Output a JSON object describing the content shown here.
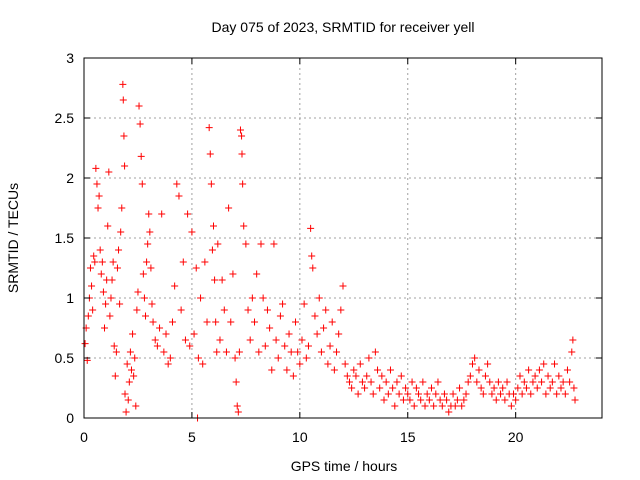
{
  "chart_data": {
    "type": "scatter",
    "title": "Day 075 of 2023, SRMTID for receiver yell",
    "xlabel": "GPS time / hours",
    "ylabel": "SRMTID / TECUs",
    "xlim": [
      0,
      24
    ],
    "ylim": [
      0,
      3
    ],
    "xticks": [
      0,
      5,
      10,
      15,
      20
    ],
    "xtick_labels": [
      "0",
      "5",
      "10",
      "15",
      "20"
    ],
    "yticks": [
      0,
      0.5,
      1,
      1.5,
      2,
      2.5,
      3
    ],
    "ytick_labels": [
      "0",
      "0.5",
      "1",
      "1.5",
      "2",
      "2.5",
      "3"
    ],
    "grid": true,
    "marker": "plus",
    "color": "#ff0000",
    "series": [
      {
        "name": "SRMTID",
        "points": [
          [
            0.05,
            0.62
          ],
          [
            0.1,
            0.75
          ],
          [
            0.15,
            0.48
          ],
          [
            0.2,
            0.85
          ],
          [
            0.25,
            1.0
          ],
          [
            0.3,
            1.25
          ],
          [
            0.35,
            1.1
          ],
          [
            0.4,
            0.9
          ],
          [
            0.45,
            1.35
          ],
          [
            0.5,
            1.3
          ],
          [
            0.55,
            2.08
          ],
          [
            0.6,
            1.95
          ],
          [
            0.65,
            1.75
          ],
          [
            0.7,
            1.85
          ],
          [
            0.75,
            1.4
          ],
          [
            0.8,
            1.2
          ],
          [
            0.85,
            1.3
          ],
          [
            0.9,
            1.05
          ],
          [
            0.95,
            0.75
          ],
          [
            1.0,
            0.95
          ],
          [
            1.05,
            1.15
          ],
          [
            1.1,
            1.6
          ],
          [
            1.15,
            2.05
          ],
          [
            1.2,
            0.85
          ],
          [
            1.25,
            1.0
          ],
          [
            1.3,
            1.15
          ],
          [
            1.35,
            1.3
          ],
          [
            1.4,
            0.6
          ],
          [
            1.45,
            0.35
          ],
          [
            1.5,
            0.55
          ],
          [
            1.55,
            1.25
          ],
          [
            1.6,
            1.4
          ],
          [
            1.65,
            0.95
          ],
          [
            1.7,
            1.55
          ],
          [
            1.75,
            1.75
          ],
          [
            1.8,
            2.78
          ],
          [
            1.82,
            2.65
          ],
          [
            1.85,
            2.35
          ],
          [
            1.88,
            2.1
          ],
          [
            1.9,
            0.2
          ],
          [
            1.95,
            0.05
          ],
          [
            2.0,
            0.45
          ],
          [
            2.05,
            0.15
          ],
          [
            2.1,
            0.3
          ],
          [
            2.15,
            0.55
          ],
          [
            2.2,
            0.4
          ],
          [
            2.25,
            0.7
          ],
          [
            2.3,
            0.35
          ],
          [
            2.35,
            0.5
          ],
          [
            2.4,
            0.1
          ],
          [
            2.45,
            0.9
          ],
          [
            2.5,
            1.05
          ],
          [
            2.55,
            2.6
          ],
          [
            2.6,
            2.45
          ],
          [
            2.65,
            2.18
          ],
          [
            2.7,
            1.95
          ],
          [
            2.75,
            1.2
          ],
          [
            2.8,
            1.0
          ],
          [
            2.85,
            0.85
          ],
          [
            2.9,
            1.3
          ],
          [
            2.95,
            1.45
          ],
          [
            3.0,
            1.7
          ],
          [
            3.05,
            1.55
          ],
          [
            3.1,
            1.25
          ],
          [
            3.15,
            0.95
          ],
          [
            3.2,
            0.8
          ],
          [
            3.3,
            0.65
          ],
          [
            3.4,
            0.6
          ],
          [
            3.5,
            0.75
          ],
          [
            3.6,
            1.7
          ],
          [
            3.7,
            0.55
          ],
          [
            3.8,
            0.7
          ],
          [
            3.9,
            0.45
          ],
          [
            4.0,
            0.5
          ],
          [
            4.1,
            0.8
          ],
          [
            4.2,
            1.1
          ],
          [
            4.3,
            1.95
          ],
          [
            4.4,
            1.85
          ],
          [
            4.5,
            0.9
          ],
          [
            4.6,
            1.3
          ],
          [
            4.7,
            0.65
          ],
          [
            4.8,
            1.7
          ],
          [
            4.9,
            0.6
          ],
          [
            5.0,
            1.55
          ],
          [
            5.1,
            0.7
          ],
          [
            5.2,
            1.25
          ],
          [
            5.26,
            0.0
          ],
          [
            5.3,
            0.5
          ],
          [
            5.4,
            1.0
          ],
          [
            5.5,
            0.45
          ],
          [
            5.6,
            1.3
          ],
          [
            5.7,
            0.8
          ],
          [
            5.8,
            2.42
          ],
          [
            5.85,
            2.2
          ],
          [
            5.9,
            1.95
          ],
          [
            5.95,
            1.4
          ],
          [
            6.0,
            1.6
          ],
          [
            6.05,
            1.15
          ],
          [
            6.1,
            0.8
          ],
          [
            6.15,
            0.55
          ],
          [
            6.2,
            1.45
          ],
          [
            6.3,
            0.65
          ],
          [
            6.4,
            1.15
          ],
          [
            6.5,
            0.9
          ],
          [
            6.6,
            0.55
          ],
          [
            6.7,
            1.75
          ],
          [
            6.8,
            0.8
          ],
          [
            6.9,
            1.2
          ],
          [
            7.0,
            0.5
          ],
          [
            7.05,
            0.3
          ],
          [
            7.1,
            0.1
          ],
          [
            7.15,
            0.05
          ],
          [
            7.2,
            0.55
          ],
          [
            7.25,
            2.4
          ],
          [
            7.3,
            2.35
          ],
          [
            7.32,
            2.2
          ],
          [
            7.35,
            1.95
          ],
          [
            7.4,
            1.6
          ],
          [
            7.5,
            1.45
          ],
          [
            7.6,
            0.9
          ],
          [
            7.7,
            0.65
          ],
          [
            7.8,
            1.0
          ],
          [
            7.9,
            0.8
          ],
          [
            8.0,
            1.2
          ],
          [
            8.1,
            0.55
          ],
          [
            8.2,
            1.45
          ],
          [
            8.3,
            1.0
          ],
          [
            8.4,
            0.6
          ],
          [
            8.5,
            0.9
          ],
          [
            8.6,
            0.75
          ],
          [
            8.7,
            0.4
          ],
          [
            8.8,
            1.45
          ],
          [
            8.9,
            0.65
          ],
          [
            9.0,
            0.5
          ],
          [
            9.1,
            0.85
          ],
          [
            9.2,
            0.95
          ],
          [
            9.3,
            0.6
          ],
          [
            9.4,
            0.4
          ],
          [
            9.5,
            0.7
          ],
          [
            9.6,
            0.55
          ],
          [
            9.7,
            0.35
          ],
          [
            9.8,
            0.8
          ],
          [
            9.9,
            0.55
          ],
          [
            10.0,
            0.45
          ],
          [
            10.1,
            0.65
          ],
          [
            10.2,
            0.95
          ],
          [
            10.3,
            0.5
          ],
          [
            10.4,
            0.6
          ],
          [
            10.5,
            1.58
          ],
          [
            10.55,
            1.35
          ],
          [
            10.6,
            1.25
          ],
          [
            10.7,
            0.85
          ],
          [
            10.8,
            0.7
          ],
          [
            10.9,
            1.0
          ],
          [
            11.0,
            0.55
          ],
          [
            11.1,
            0.75
          ],
          [
            11.2,
            0.9
          ],
          [
            11.3,
            0.45
          ],
          [
            11.4,
            0.6
          ],
          [
            11.5,
            0.8
          ],
          [
            11.6,
            0.4
          ],
          [
            11.7,
            0.55
          ],
          [
            11.8,
            0.7
          ],
          [
            11.9,
            0.9
          ],
          [
            12.0,
            1.1
          ],
          [
            12.1,
            0.45
          ],
          [
            12.2,
            0.35
          ],
          [
            12.3,
            0.3
          ],
          [
            12.4,
            0.25
          ],
          [
            12.5,
            0.4
          ],
          [
            12.6,
            0.35
          ],
          [
            12.7,
            0.2
          ],
          [
            12.8,
            0.45
          ],
          [
            12.9,
            0.3
          ],
          [
            13.0,
            0.25
          ],
          [
            13.1,
            0.35
          ],
          [
            13.2,
            0.5
          ],
          [
            13.3,
            0.3
          ],
          [
            13.4,
            0.2
          ],
          [
            13.5,
            0.55
          ],
          [
            13.6,
            0.4
          ],
          [
            13.7,
            0.25
          ],
          [
            13.8,
            0.35
          ],
          [
            13.9,
            0.15
          ],
          [
            14.0,
            0.3
          ],
          [
            14.1,
            0.2
          ],
          [
            14.2,
            0.4
          ],
          [
            14.3,
            0.25
          ],
          [
            14.4,
            0.1
          ],
          [
            14.5,
            0.3
          ],
          [
            14.6,
            0.2
          ],
          [
            14.7,
            0.35
          ],
          [
            14.8,
            0.15
          ],
          [
            14.9,
            0.25
          ],
          [
            15.0,
            0.2
          ],
          [
            15.1,
            0.15
          ],
          [
            15.2,
            0.3
          ],
          [
            15.3,
            0.1
          ],
          [
            15.4,
            0.25
          ],
          [
            15.5,
            0.2
          ],
          [
            15.6,
            0.15
          ],
          [
            15.7,
            0.3
          ],
          [
            15.8,
            0.1
          ],
          [
            15.9,
            0.2
          ],
          [
            16.0,
            0.15
          ],
          [
            16.1,
            0.25
          ],
          [
            16.2,
            0.1
          ],
          [
            16.3,
            0.2
          ],
          [
            16.4,
            0.3
          ],
          [
            16.5,
            0.15
          ],
          [
            16.6,
            0.1
          ],
          [
            16.7,
            0.2
          ],
          [
            16.8,
            0.15
          ],
          [
            16.9,
            0.05
          ],
          [
            17.0,
            0.1
          ],
          [
            17.1,
            0.2
          ],
          [
            17.2,
            0.1
          ],
          [
            17.3,
            0.15
          ],
          [
            17.4,
            0.25
          ],
          [
            17.5,
            0.1
          ],
          [
            17.6,
            0.15
          ],
          [
            17.7,
            0.2
          ],
          [
            17.8,
            0.3
          ],
          [
            17.9,
            0.35
          ],
          [
            18.0,
            0.45
          ],
          [
            18.1,
            0.5
          ],
          [
            18.2,
            0.3
          ],
          [
            18.3,
            0.4
          ],
          [
            18.4,
            0.25
          ],
          [
            18.5,
            0.2
          ],
          [
            18.6,
            0.35
          ],
          [
            18.7,
            0.45
          ],
          [
            18.8,
            0.3
          ],
          [
            18.9,
            0.2
          ],
          [
            19.0,
            0.25
          ],
          [
            19.1,
            0.15
          ],
          [
            19.2,
            0.3
          ],
          [
            19.3,
            0.2
          ],
          [
            19.4,
            0.25
          ],
          [
            19.5,
            0.15
          ],
          [
            19.6,
            0.3
          ],
          [
            19.7,
            0.2
          ],
          [
            19.8,
            0.1
          ],
          [
            19.9,
            0.2
          ],
          [
            20.0,
            0.15
          ],
          [
            20.1,
            0.25
          ],
          [
            20.2,
            0.35
          ],
          [
            20.3,
            0.2
          ],
          [
            20.4,
            0.3
          ],
          [
            20.5,
            0.25
          ],
          [
            20.6,
            0.4
          ],
          [
            20.7,
            0.2
          ],
          [
            20.8,
            0.3
          ],
          [
            20.9,
            0.35
          ],
          [
            21.0,
            0.25
          ],
          [
            21.1,
            0.4
          ],
          [
            21.2,
            0.3
          ],
          [
            21.3,
            0.45
          ],
          [
            21.4,
            0.2
          ],
          [
            21.5,
            0.35
          ],
          [
            21.6,
            0.25
          ],
          [
            21.7,
            0.3
          ],
          [
            21.8,
            0.45
          ],
          [
            21.9,
            0.2
          ],
          [
            22.0,
            0.35
          ],
          [
            22.1,
            0.25
          ],
          [
            22.2,
            0.3
          ],
          [
            22.3,
            0.2
          ],
          [
            22.4,
            0.4
          ],
          [
            22.5,
            0.3
          ],
          [
            22.6,
            0.55
          ],
          [
            22.65,
            0.65
          ],
          [
            22.7,
            0.25
          ],
          [
            22.75,
            0.15
          ]
        ]
      }
    ]
  }
}
